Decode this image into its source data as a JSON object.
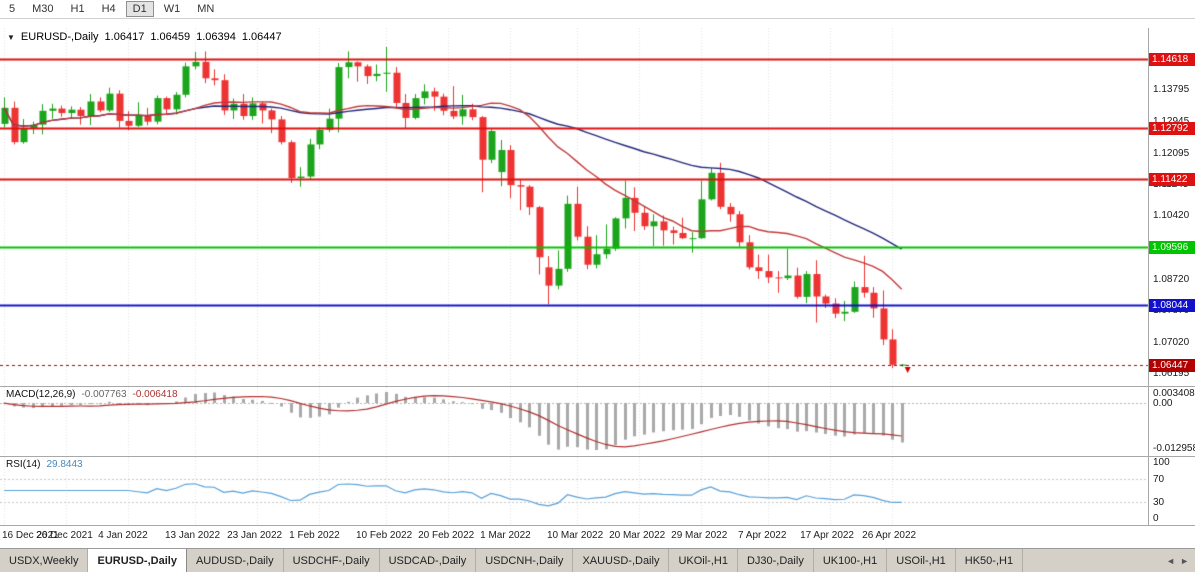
{
  "toolbar": {
    "timeframes": [
      {
        "label": "5",
        "active": false
      },
      {
        "label": "M30",
        "active": false
      },
      {
        "label": "H1",
        "active": false
      },
      {
        "label": "H4",
        "active": false
      },
      {
        "label": "D1",
        "active": true
      },
      {
        "label": "W1",
        "active": false
      },
      {
        "label": "MN",
        "active": false
      }
    ]
  },
  "chart_header": {
    "dropdown_icon": "▼",
    "symbol": "EURUSD-,Daily",
    "open": "1.06417",
    "high": "1.06459",
    "low": "1.06394",
    "close": "1.06447"
  },
  "chart_data": [
    {
      "name": "price",
      "type": "candlestick",
      "symbol": "EURUSD-",
      "timeframe": "Daily",
      "y_range": [
        1.0598,
        1.1535
      ],
      "colors": {
        "up": "#1ca51c",
        "down": "#ee3333"
      },
      "ma": [
        {
          "period": 45,
          "color": "#23297a"
        },
        {
          "period": 20,
          "color": "#c03a3a"
        }
      ],
      "hlines": [
        {
          "price": 1.14618,
          "label": "1.14618",
          "color": "#dd1111"
        },
        {
          "price": 1.12792,
          "label": "1.12792",
          "color": "#dd1111"
        },
        {
          "price": 1.11422,
          "label": "1.11422",
          "color": "#dd1111"
        },
        {
          "price": 1.09596,
          "label": "1.09596",
          "color": "#00c400"
        },
        {
          "price": 1.08044,
          "label": "1.08044",
          "color": "#1111cc"
        }
      ],
      "bid": {
        "price": 1.06447,
        "label": "1.06447",
        "color": "#b00000"
      },
      "markers": [
        {
          "i": 94,
          "price": 1.063,
          "shape": "arrow-down",
          "color": "#cc0000"
        }
      ],
      "price_ticks": [
        "1.13795",
        "1.12945",
        "1.12095",
        "1.11245",
        "1.10420",
        "1.09570",
        "1.08720",
        "1.07870",
        "1.07020",
        "1.06195"
      ],
      "time_ticks": [
        {
          "label": "16 Dec 2021",
          "i": 0
        },
        {
          "label": "26 Dec 2021",
          "i": 6.5
        },
        {
          "label": "4 Jan 2022",
          "i": 13
        },
        {
          "label": "13 Jan 2022",
          "i": 20
        },
        {
          "label": "23 Jan 2022",
          "i": 26.5
        },
        {
          "label": "1 Feb 2022",
          "i": 33
        },
        {
          "label": "10 Feb 2022",
          "i": 40
        },
        {
          "label": "20 Feb 2022",
          "i": 46.5
        },
        {
          "label": "1 Mar 2022",
          "i": 53
        },
        {
          "label": "10 Mar 2022",
          "i": 60
        },
        {
          "label": "20 Mar 2022",
          "i": 66.5
        },
        {
          "label": "29 Mar 2022",
          "i": 73
        },
        {
          "label": "7 Apr 2022",
          "i": 80
        },
        {
          "label": "17 Apr 2022",
          "i": 86.5
        },
        {
          "label": "26 Apr 2022",
          "i": 93
        }
      ],
      "candles": [
        [
          1.1289,
          1.136,
          1.128,
          1.1332
        ],
        [
          1.1332,
          1.1349,
          1.1234,
          1.124
        ],
        [
          1.124,
          1.1302,
          1.1236,
          1.1278
        ],
        [
          1.1278,
          1.1295,
          1.1262,
          1.1287
        ],
        [
          1.1287,
          1.1342,
          1.1261,
          1.1324
        ],
        [
          1.1324,
          1.1343,
          1.1303,
          1.133
        ],
        [
          1.133,
          1.1338,
          1.1308,
          1.1318
        ],
        [
          1.1318,
          1.1336,
          1.1304,
          1.1327
        ],
        [
          1.1327,
          1.1334,
          1.1287,
          1.131
        ],
        [
          1.131,
          1.1369,
          1.1286,
          1.1349
        ],
        [
          1.1349,
          1.136,
          1.132,
          1.1325
        ],
        [
          1.1325,
          1.1386,
          1.1321,
          1.137
        ],
        [
          1.137,
          1.1379,
          1.1279,
          1.1297
        ],
        [
          1.1297,
          1.1323,
          1.1272,
          1.1284
        ],
        [
          1.1284,
          1.1347,
          1.1281,
          1.1313
        ],
        [
          1.1313,
          1.1332,
          1.1285,
          1.1295
        ],
        [
          1.1295,
          1.1365,
          1.1288,
          1.1358
        ],
        [
          1.1358,
          1.1362,
          1.1313,
          1.1328
        ],
        [
          1.1328,
          1.1374,
          1.1314,
          1.1367
        ],
        [
          1.1367,
          1.1453,
          1.136,
          1.1443
        ],
        [
          1.1443,
          1.1482,
          1.1435,
          1.1455
        ],
        [
          1.1455,
          1.1483,
          1.1398,
          1.1411
        ],
        [
          1.1411,
          1.1435,
          1.1392,
          1.1406
        ],
        [
          1.1406,
          1.1422,
          1.1313,
          1.1325
        ],
        [
          1.1325,
          1.1357,
          1.1302,
          1.1343
        ],
        [
          1.1343,
          1.1369,
          1.13,
          1.131
        ],
        [
          1.131,
          1.136,
          1.13,
          1.1344
        ],
        [
          1.1344,
          1.1349,
          1.129,
          1.1325
        ],
        [
          1.1325,
          1.133,
          1.1264,
          1.1301
        ],
        [
          1.1301,
          1.131,
          1.1234,
          1.124
        ],
        [
          1.124,
          1.1245,
          1.1131,
          1.1144
        ],
        [
          1.1144,
          1.1173,
          1.1121,
          1.1148
        ],
        [
          1.1148,
          1.1249,
          1.1141,
          1.1234
        ],
        [
          1.1234,
          1.128,
          1.1221,
          1.1273
        ],
        [
          1.1273,
          1.133,
          1.1267,
          1.1303
        ],
        [
          1.1303,
          1.1452,
          1.1266,
          1.1441
        ],
        [
          1.1441,
          1.1483,
          1.1411,
          1.1454
        ],
        [
          1.1454,
          1.1456,
          1.1402,
          1.1443
        ],
        [
          1.1443,
          1.1448,
          1.1396,
          1.1417
        ],
        [
          1.1417,
          1.1448,
          1.1403,
          1.1423
        ],
        [
          1.1423,
          1.1495,
          1.1375,
          1.1426
        ],
        [
          1.1426,
          1.1441,
          1.133,
          1.1345
        ],
        [
          1.1345,
          1.1369,
          1.1278,
          1.1305
        ],
        [
          1.1305,
          1.1369,
          1.1301,
          1.1358
        ],
        [
          1.1358,
          1.1395,
          1.1341,
          1.1376
        ],
        [
          1.1376,
          1.1386,
          1.1324,
          1.1362
        ],
        [
          1.1362,
          1.137,
          1.1312,
          1.1324
        ],
        [
          1.1324,
          1.139,
          1.1302,
          1.1309
        ],
        [
          1.1309,
          1.1367,
          1.1287,
          1.1328
        ],
        [
          1.1328,
          1.1343,
          1.1299,
          1.1307
        ],
        [
          1.1307,
          1.131,
          1.1106,
          1.1193
        ],
        [
          1.1193,
          1.1274,
          1.1184,
          1.127
        ],
        [
          1.116,
          1.1246,
          1.1122,
          1.1219
        ],
        [
          1.1219,
          1.1232,
          1.109,
          1.1125
        ],
        [
          1.1125,
          1.1141,
          1.1058,
          1.1121
        ],
        [
          1.1121,
          1.1125,
          1.1045,
          1.1066
        ],
        [
          1.1066,
          1.1069,
          1.0886,
          1.0932
        ],
        [
          1.0905,
          1.0935,
          1.0806,
          1.0856
        ],
        [
          1.0856,
          1.095,
          1.0846,
          1.0901
        ],
        [
          1.0901,
          1.1097,
          1.0893,
          1.1075
        ],
        [
          1.1075,
          1.1121,
          1.0977,
          1.0987
        ],
        [
          1.0987,
          1.1015,
          1.09,
          1.0912
        ],
        [
          1.0912,
          1.0991,
          1.0902,
          1.094
        ],
        [
          1.094,
          1.102,
          1.0928,
          1.0955
        ],
        [
          1.0955,
          1.1039,
          1.0949,
          1.1036
        ],
        [
          1.1036,
          1.1137,
          1.1009,
          1.1091
        ],
        [
          1.1091,
          1.1119,
          1.1002,
          1.1051
        ],
        [
          1.1051,
          1.1069,
          1.1005,
          1.1015
        ],
        [
          1.1015,
          1.1047,
          1.0962,
          1.1028
        ],
        [
          1.1028,
          1.1044,
          1.0963,
          1.1004
        ],
        [
          1.1004,
          1.1014,
          1.0966,
          1.0997
        ],
        [
          1.0997,
          1.1038,
          1.0981,
          1.0983
        ],
        [
          1.0983,
          1.0999,
          1.0944,
          1.0983
        ],
        [
          1.0983,
          1.1137,
          1.0981,
          1.1087
        ],
        [
          1.1087,
          1.1171,
          1.1084,
          1.1158
        ],
        [
          1.1158,
          1.1185,
          1.1061,
          1.1067
        ],
        [
          1.1067,
          1.1077,
          1.1027,
          1.1047
        ],
        [
          1.1047,
          1.1056,
          1.096,
          1.0972
        ],
        [
          1.0972,
          1.0991,
          1.0899,
          1.0905
        ],
        [
          1.0905,
          1.0939,
          1.0874,
          1.0895
        ],
        [
          1.0895,
          1.0939,
          1.0863,
          1.0878
        ],
        [
          1.0878,
          1.0895,
          1.0837,
          1.0876
        ],
        [
          1.0876,
          1.0955,
          1.0871,
          1.0883
        ],
        [
          1.0883,
          1.0904,
          1.0821,
          1.0826
        ],
        [
          1.0826,
          1.0895,
          1.0809,
          1.0887
        ],
        [
          1.0887,
          1.0924,
          1.0757,
          1.0827
        ],
        [
          1.0827,
          1.0832,
          1.0796,
          1.0808
        ],
        [
          1.0808,
          1.0822,
          1.0769,
          1.0781
        ],
        [
          1.0781,
          1.0815,
          1.0761,
          1.0786
        ],
        [
          1.0786,
          1.0867,
          1.0783,
          1.0852
        ],
        [
          1.0852,
          1.0936,
          1.0824,
          1.0837
        ],
        [
          1.0837,
          1.0852,
          1.077,
          1.0795
        ],
        [
          1.0795,
          1.0843,
          1.0697,
          1.0712
        ],
        [
          1.0712,
          1.0739,
          1.0635,
          1.0644
        ],
        [
          1.06417,
          1.06459,
          1.06394,
          1.06447
        ]
      ]
    },
    {
      "name": "macd",
      "type": "bar",
      "label": "MACD(12,26,9)",
      "main_value": "-0.007763",
      "signal_value": "-0.006418",
      "params": [
        12,
        26,
        9
      ],
      "axis_ticks": [
        "0.003408",
        "0.00",
        "-0.012958"
      ],
      "colors": {
        "hist": "#a9a9a9",
        "signal": "#b03030"
      }
    },
    {
      "name": "rsi",
      "type": "line",
      "label": "RSI(14)",
      "value": "29.8443",
      "period": 14,
      "levels": [
        70,
        30
      ],
      "axis_ticks": [
        "100",
        "70",
        "30",
        "0"
      ],
      "color": "#58a0d8"
    }
  ],
  "tabbar": {
    "tabs": [
      {
        "label": "USDX,Weekly",
        "active": false
      },
      {
        "label": "EURUSD-,Daily",
        "active": true
      },
      {
        "label": "AUDUSD-,Daily",
        "active": false
      },
      {
        "label": "USDCHF-,Daily",
        "active": false
      },
      {
        "label": "USDCAD-,Daily",
        "active": false
      },
      {
        "label": "USDCNH-,Daily",
        "active": false
      },
      {
        "label": "XAUUSD-,Daily",
        "active": false
      },
      {
        "label": "UKOil-,H1",
        "active": false
      },
      {
        "label": "DJ30-,Daily",
        "active": false
      },
      {
        "label": "UK100-,H1",
        "active": false
      },
      {
        "label": "USOil-,H1",
        "active": false
      },
      {
        "label": "HK50-,H1",
        "active": false
      }
    ],
    "scroll_left": "◄",
    "scroll_right": "►"
  }
}
